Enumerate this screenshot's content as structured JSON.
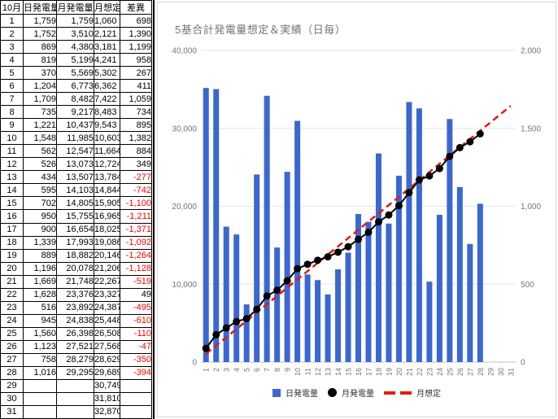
{
  "table": {
    "headers": [
      "10月",
      "日発電量",
      "月発電量",
      "月想定",
      "差異"
    ],
    "rows": [
      {
        "day": "1",
        "daily": "1,759",
        "monthly": "1,759",
        "expected": "1,060",
        "diff": "698"
      },
      {
        "day": "2",
        "daily": "1,752",
        "monthly": "3,510",
        "expected": "2,121",
        "diff": "1,390"
      },
      {
        "day": "3",
        "daily": "869",
        "monthly": "4,380",
        "expected": "3,181",
        "diff": "1,199"
      },
      {
        "day": "4",
        "daily": "819",
        "monthly": "5,199",
        "expected": "4,241",
        "diff": "958"
      },
      {
        "day": "5",
        "daily": "370",
        "monthly": "5,569",
        "expected": "5,302",
        "diff": "267"
      },
      {
        "day": "6",
        "daily": "1,204",
        "monthly": "6,773",
        "expected": "6,362",
        "diff": "411"
      },
      {
        "day": "7",
        "daily": "1,709",
        "monthly": "8,482",
        "expected": "7,422",
        "diff": "1,059"
      },
      {
        "day": "8",
        "daily": "735",
        "monthly": "9,217",
        "expected": "8,483",
        "diff": "734"
      },
      {
        "day": "9",
        "daily": "1,221",
        "monthly": "10,437",
        "expected": "9,543",
        "diff": "895"
      },
      {
        "day": "10",
        "daily": "1,548",
        "monthly": "11,985",
        "expected": "10,603",
        "diff": "1,382"
      },
      {
        "day": "11",
        "daily": "562",
        "monthly": "12,547",
        "expected": "11,664",
        "diff": "884"
      },
      {
        "day": "12",
        "daily": "526",
        "monthly": "13,073",
        "expected": "12,724",
        "diff": "349"
      },
      {
        "day": "13",
        "daily": "434",
        "monthly": "13,507",
        "expected": "13,784",
        "diff": "-277"
      },
      {
        "day": "14",
        "daily": "595",
        "monthly": "14,103",
        "expected": "14,844",
        "diff": "-742"
      },
      {
        "day": "15",
        "daily": "702",
        "monthly": "14,805",
        "expected": "15,905",
        "diff": "-1,100"
      },
      {
        "day": "16",
        "daily": "950",
        "monthly": "15,755",
        "expected": "16,965",
        "diff": "-1,211"
      },
      {
        "day": "17",
        "daily": "900",
        "monthly": "16,654",
        "expected": "18,025",
        "diff": "-1,371"
      },
      {
        "day": "18",
        "daily": "1,339",
        "monthly": "17,993",
        "expected": "19,086",
        "diff": "-1,092"
      },
      {
        "day": "19",
        "daily": "889",
        "monthly": "18,882",
        "expected": "20,146",
        "diff": "-1,264"
      },
      {
        "day": "20",
        "daily": "1,196",
        "monthly": "20,078",
        "expected": "21,206",
        "diff": "-1,128"
      },
      {
        "day": "21",
        "daily": "1,669",
        "monthly": "21,748",
        "expected": "22,267",
        "diff": "-519"
      },
      {
        "day": "22",
        "daily": "1,628",
        "monthly": "23,376",
        "expected": "23,327",
        "diff": "49"
      },
      {
        "day": "23",
        "daily": "516",
        "monthly": "23,892",
        "expected": "24,387",
        "diff": "-495"
      },
      {
        "day": "24",
        "daily": "945",
        "monthly": "24,838",
        "expected": "25,448",
        "diff": "-610"
      },
      {
        "day": "25",
        "daily": "1,560",
        "monthly": "26,398",
        "expected": "26,508",
        "diff": "-110"
      },
      {
        "day": "26",
        "daily": "1,123",
        "monthly": "27,521",
        "expected": "27,568",
        "diff": "-47"
      },
      {
        "day": "27",
        "daily": "758",
        "monthly": "28,279",
        "expected": "28,629",
        "diff": "-350"
      },
      {
        "day": "28",
        "daily": "1,016",
        "monthly": "29,295",
        "expected": "29,689",
        "diff": "-394"
      },
      {
        "day": "29",
        "daily": "",
        "monthly": "",
        "expected": "30,749",
        "diff": ""
      },
      {
        "day": "30",
        "daily": "",
        "monthly": "",
        "expected": "31,810",
        "diff": ""
      },
      {
        "day": "31",
        "daily": "",
        "monthly": "",
        "expected": "32,870",
        "diff": ""
      }
    ]
  },
  "chart": {
    "title": "5基合計発電量想定＆実績（日毎）",
    "legend": [
      {
        "label": "日発電量",
        "type": "bar"
      },
      {
        "label": "月発電量",
        "type": "point"
      },
      {
        "label": "月想定",
        "type": "dash"
      }
    ]
  },
  "chart_data": {
    "type": "bar",
    "title": "5基合計発電量想定＆実績（日毎）",
    "x": [
      1,
      2,
      3,
      4,
      5,
      6,
      7,
      8,
      9,
      10,
      11,
      12,
      13,
      14,
      15,
      16,
      17,
      18,
      19,
      20,
      21,
      22,
      23,
      24,
      25,
      26,
      27,
      28,
      29,
      30,
      31
    ],
    "series": [
      {
        "name": "日発電量",
        "type": "bar",
        "axis": "right",
        "values": [
          1759,
          1752,
          869,
          819,
          370,
          1204,
          1709,
          735,
          1221,
          1548,
          562,
          526,
          434,
          595,
          702,
          950,
          900,
          1339,
          889,
          1196,
          1669,
          1628,
          516,
          945,
          1560,
          1123,
          758,
          1016,
          null,
          null,
          null
        ]
      },
      {
        "name": "月発電量",
        "type": "line+point",
        "axis": "left",
        "values": [
          1759,
          3510,
          4380,
          5199,
          5569,
          6773,
          8482,
          9217,
          10437,
          11985,
          12547,
          13073,
          13507,
          14103,
          14805,
          15755,
          16654,
          17993,
          18882,
          20078,
          21748,
          23376,
          23892,
          24838,
          26398,
          27521,
          28279,
          29295,
          null,
          null,
          null
        ]
      },
      {
        "name": "月想定",
        "type": "dashed-line",
        "axis": "left",
        "values": [
          1060,
          2121,
          3181,
          4241,
          5302,
          6362,
          7422,
          8483,
          9543,
          10603,
          11664,
          12724,
          13784,
          14844,
          15905,
          16965,
          18025,
          19086,
          20146,
          21206,
          22267,
          23327,
          24387,
          25448,
          26508,
          27568,
          28629,
          29689,
          30749,
          31810,
          32870
        ]
      }
    ],
    "left_axis": {
      "min": 0,
      "max": 40000,
      "ticks": [
        "0",
        "10,000",
        "20,000",
        "30,000",
        "40,000"
      ]
    },
    "right_axis": {
      "min": 0,
      "max": 2000,
      "ticks": [
        "0",
        "500",
        "1,000",
        "1,500",
        "2,000"
      ]
    },
    "grid": true,
    "legend_position": "bottom",
    "colors": {
      "bar": "#3b67d0",
      "point_line": "#000000",
      "expected_line": "#e8190c",
      "grid": "#e6e6e6",
      "baseline": "#c0c0c0",
      "axis_text": "#757575",
      "title_text": "#757575"
    }
  }
}
